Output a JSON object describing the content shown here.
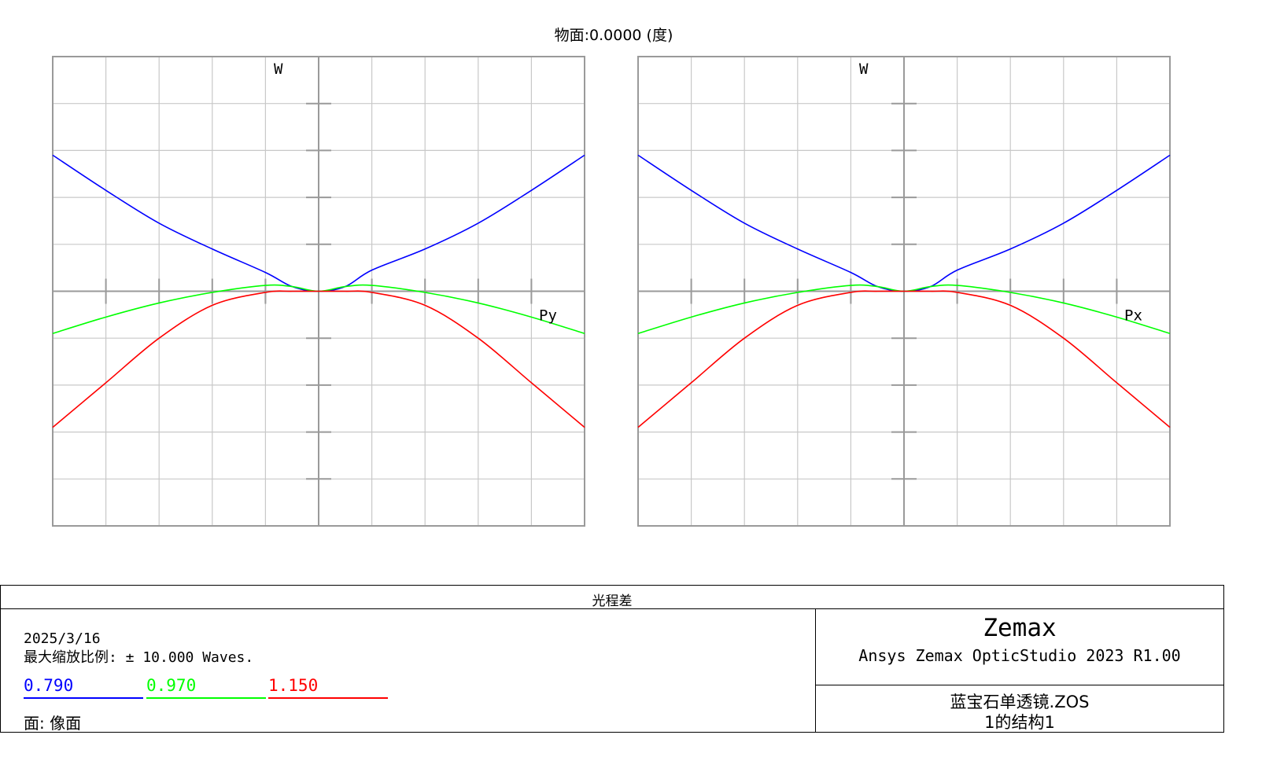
{
  "title": "物面:0.0000 (度)",
  "colors": {
    "blue": "#0000ff",
    "green": "#00ff00",
    "red": "#ff0000",
    "grid": "#c8c8c8",
    "axis": "#9a9a9a"
  },
  "chart_data": [
    {
      "type": "line",
      "ylabel": "W",
      "xlabel": "Py",
      "xlim": [
        -1,
        1
      ],
      "ylim": [
        -10,
        10
      ],
      "x": [
        -1.0,
        -0.8,
        -0.6,
        -0.4,
        -0.2,
        -0.1,
        0.0,
        0.1,
        0.2,
        0.4,
        0.6,
        0.8,
        1.0
      ],
      "series": [
        {
          "name": "0.790",
          "color": "#0000ff",
          "values": [
            5.8,
            4.3,
            2.9,
            1.8,
            0.8,
            0.2,
            0.0,
            0.2,
            0.9,
            1.8,
            2.9,
            4.3,
            5.8
          ]
        },
        {
          "name": "0.970",
          "color": "#00ff00",
          "values": [
            -1.8,
            -1.1,
            -0.5,
            -0.05,
            0.25,
            0.2,
            0.0,
            0.2,
            0.25,
            -0.05,
            -0.5,
            -1.1,
            -1.8
          ]
        },
        {
          "name": "1.150",
          "color": "#ff0000",
          "values": [
            -5.8,
            -3.9,
            -2.0,
            -0.6,
            -0.05,
            0.0,
            0.0,
            0.0,
            -0.05,
            -0.6,
            -2.0,
            -3.9,
            -5.8
          ]
        }
      ]
    },
    {
      "type": "line",
      "ylabel": "W",
      "xlabel": "Px",
      "xlim": [
        -1,
        1
      ],
      "ylim": [
        -10,
        10
      ],
      "x": [
        -1.0,
        -0.8,
        -0.6,
        -0.4,
        -0.2,
        -0.1,
        0.0,
        0.1,
        0.2,
        0.4,
        0.6,
        0.8,
        1.0
      ],
      "series": [
        {
          "name": "0.790",
          "color": "#0000ff",
          "values": [
            5.8,
            4.3,
            2.9,
            1.8,
            0.8,
            0.2,
            0.0,
            0.2,
            0.9,
            1.8,
            2.9,
            4.3,
            5.8
          ]
        },
        {
          "name": "0.970",
          "color": "#00ff00",
          "values": [
            -1.8,
            -1.1,
            -0.5,
            -0.05,
            0.25,
            0.2,
            0.0,
            0.2,
            0.25,
            -0.05,
            -0.5,
            -1.1,
            -1.8
          ]
        },
        {
          "name": "1.150",
          "color": "#ff0000",
          "values": [
            -5.8,
            -3.9,
            -2.0,
            -0.6,
            -0.05,
            0.0,
            0.0,
            0.0,
            -0.05,
            -0.6,
            -2.0,
            -3.9,
            -5.8
          ]
        }
      ]
    }
  ],
  "footer": {
    "heading": "光程差",
    "date": "2025/3/16",
    "scale_label": "最大缩放比例: ± 10.000 Waves.",
    "legend": [
      {
        "label": "0.790",
        "color": "#0000ff"
      },
      {
        "label": "0.970",
        "color": "#00ff00"
      },
      {
        "label": "1.150",
        "color": "#ff0000"
      }
    ],
    "surface_label": "面: 像面",
    "brand": "Zemax",
    "product": "Ansys Zemax OpticStudio 2023 R1.00",
    "file_name": "蓝宝石单透镜.ZOS",
    "config": "1的结构1"
  }
}
